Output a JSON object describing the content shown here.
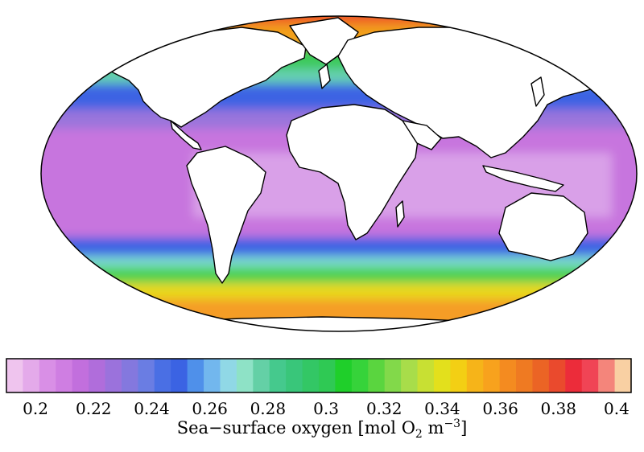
{
  "map": {
    "projection": "mollweide",
    "ocean_zones": [
      {
        "name": "arctic",
        "color": "#f07a2a"
      },
      {
        "name": "subpolar",
        "color": "#3ec95a"
      },
      {
        "name": "midlat",
        "color": "#3c63e3"
      },
      {
        "name": "tropics",
        "color": "#c774de"
      },
      {
        "name": "equator",
        "color": "#d99de8"
      },
      {
        "name": "southern-green",
        "color": "#4ed24f"
      },
      {
        "name": "southern-yellow",
        "color": "#f0c21e"
      },
      {
        "name": "antarctic-orange",
        "color": "#f59d26"
      }
    ],
    "land_color": "#ffffff",
    "coast_color": "#000000"
  },
  "colorbar": {
    "colors": [
      "#efc4ee",
      "#e4aaea",
      "#d98fe6",
      "#cf7ee2",
      "#c26fdd",
      "#b06ddb",
      "#9b72dc",
      "#8478de",
      "#6a7de3",
      "#4a6fe4",
      "#3b63e3",
      "#4f90ea",
      "#72b7ee",
      "#90d8e6",
      "#8ee2c6",
      "#64d0a6",
      "#45c98d",
      "#39c67a",
      "#33c765",
      "#2fc954",
      "#1fcf2a",
      "#36d33a",
      "#5ad53f",
      "#82d94a",
      "#a8dd4a",
      "#c8e033",
      "#e3e01c",
      "#f3cf14",
      "#f6b419",
      "#f8a21d",
      "#f48b20",
      "#ef7a22",
      "#eb6425",
      "#ea4a2d",
      "#ec2c3a",
      "#f04455",
      "#f4857b",
      "#f9d0a3"
    ],
    "tick_labels": [
      "0.2",
      "0.22",
      "0.24",
      "0.26",
      "0.28",
      "0.3",
      "0.32",
      "0.34",
      "0.36",
      "0.38",
      "0.4"
    ],
    "tick_values": [
      0.2,
      0.22,
      0.24,
      0.26,
      0.28,
      0.3,
      0.32,
      0.34,
      0.36,
      0.38,
      0.4
    ],
    "range": [
      0.19,
      0.405
    ],
    "label_main": "Sea−surface oxygen [mol O",
    "label_sub": "2",
    "label_mid": " m",
    "label_sup": "−3",
    "label_end": "]"
  }
}
